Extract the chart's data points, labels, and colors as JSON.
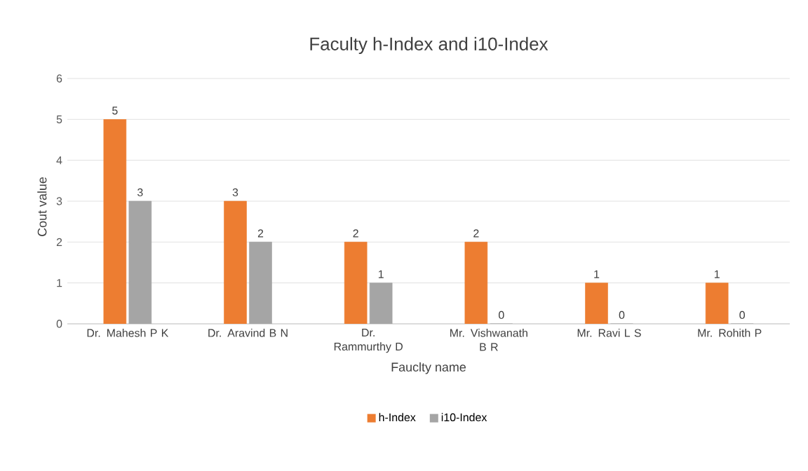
{
  "chart_data": {
    "type": "bar",
    "title": "Faculty h-Index and i10-Index",
    "xlabel": "Fauclty name",
    "ylabel": "Cout value",
    "categories": [
      "Dr. Mahesh P K",
      "Dr. Aravind B N",
      "Dr. Rammurthy D",
      "Mr. Vishwanath B R",
      "Mr. Ravi L S",
      "Mr. Rohith P"
    ],
    "series": [
      {
        "name": "h-Index",
        "color": "#ed7d31",
        "values": [
          5,
          3,
          2,
          2,
          1,
          1
        ]
      },
      {
        "name": "i10-Index",
        "color": "#a5a5a5",
        "values": [
          3,
          2,
          1,
          0,
          0,
          0
        ]
      }
    ],
    "ylim": [
      0,
      6
    ],
    "yticks": [
      0,
      1,
      2,
      3,
      4,
      5,
      6
    ],
    "grid": "y",
    "legend": "bottom",
    "data_labels": true
  }
}
